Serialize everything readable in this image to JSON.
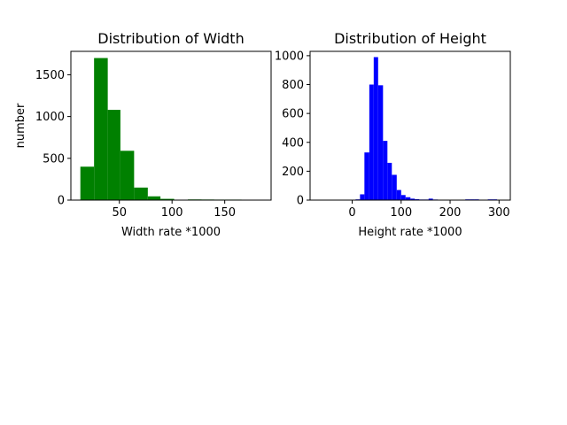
{
  "chart_data": [
    {
      "type": "bar",
      "title": "Distribution of Width",
      "xlabel": "Width rate *1000",
      "ylabel": "number",
      "color": "#008000",
      "xlim": [
        4,
        194
      ],
      "ylim": [
        0,
        1780
      ],
      "xticks": [
        50,
        100,
        150
      ],
      "yticks": [
        0,
        500,
        1000,
        1500
      ],
      "bins": [
        {
          "x0": 13,
          "x1": 26,
          "count": 400
        },
        {
          "x0": 26,
          "x1": 39,
          "count": 1700
        },
        {
          "x0": 39,
          "x1": 51,
          "count": 1080
        },
        {
          "x0": 51,
          "x1": 64,
          "count": 590
        },
        {
          "x0": 64,
          "x1": 77,
          "count": 150
        },
        {
          "x0": 77,
          "x1": 89,
          "count": 45
        },
        {
          "x0": 89,
          "x1": 102,
          "count": 15
        },
        {
          "x0": 102,
          "x1": 115,
          "count": 5
        },
        {
          "x0": 115,
          "x1": 128,
          "count": 8
        },
        {
          "x0": 128,
          "x1": 140,
          "count": 7
        },
        {
          "x0": 140,
          "x1": 153,
          "count": 6
        },
        {
          "x0": 153,
          "x1": 166,
          "count": 6
        },
        {
          "x0": 166,
          "x1": 178,
          "count": 5
        },
        {
          "x0": 178,
          "x1": 191,
          "count": 5
        }
      ],
      "grid": false
    },
    {
      "type": "bar",
      "title": "Distribution of Height",
      "xlabel": "Height rate *1000",
      "ylabel": "",
      "color": "#0000ff",
      "xlim": [
        -86,
        323
      ],
      "ylim": [
        0,
        1030
      ],
      "xticks": [
        0,
        100,
        200,
        300
      ],
      "yticks": [
        0,
        200,
        400,
        600,
        800,
        1000
      ],
      "bins": [
        {
          "x0": -68,
          "x1": -59,
          "count": 3
        },
        {
          "x0": -59,
          "x1": -49,
          "count": 0
        },
        {
          "x0": -49,
          "x1": -40,
          "count": 0
        },
        {
          "x0": -40,
          "x1": -31,
          "count": 0
        },
        {
          "x0": -31,
          "x1": -21,
          "count": 3
        },
        {
          "x0": -21,
          "x1": -12,
          "count": 0
        },
        {
          "x0": -12,
          "x1": -3,
          "count": 0
        },
        {
          "x0": -3,
          "x1": 7,
          "count": 2
        },
        {
          "x0": 7,
          "x1": 16,
          "count": 5
        },
        {
          "x0": 16,
          "x1": 25,
          "count": 40
        },
        {
          "x0": 25,
          "x1": 35,
          "count": 330
        },
        {
          "x0": 35,
          "x1": 44,
          "count": 800
        },
        {
          "x0": 44,
          "x1": 53,
          "count": 990
        },
        {
          "x0": 53,
          "x1": 63,
          "count": 795
        },
        {
          "x0": 63,
          "x1": 72,
          "count": 410
        },
        {
          "x0": 72,
          "x1": 81,
          "count": 258
        },
        {
          "x0": 81,
          "x1": 91,
          "count": 175
        },
        {
          "x0": 91,
          "x1": 100,
          "count": 70
        },
        {
          "x0": 100,
          "x1": 109,
          "count": 35
        },
        {
          "x0": 109,
          "x1": 119,
          "count": 20
        },
        {
          "x0": 119,
          "x1": 128,
          "count": 10
        },
        {
          "x0": 128,
          "x1": 137,
          "count": 6
        },
        {
          "x0": 137,
          "x1": 147,
          "count": 4
        },
        {
          "x0": 147,
          "x1": 156,
          "count": 4
        },
        {
          "x0": 156,
          "x1": 165,
          "count": 10
        },
        {
          "x0": 165,
          "x1": 175,
          "count": 4
        },
        {
          "x0": 175,
          "x1": 184,
          "count": 3
        },
        {
          "x0": 184,
          "x1": 193,
          "count": 2
        },
        {
          "x0": 193,
          "x1": 203,
          "count": 2
        },
        {
          "x0": 203,
          "x1": 212,
          "count": 3
        },
        {
          "x0": 212,
          "x1": 221,
          "count": 0
        },
        {
          "x0": 221,
          "x1": 231,
          "count": 2
        },
        {
          "x0": 231,
          "x1": 240,
          "count": 5
        },
        {
          "x0": 240,
          "x1": 249,
          "count": 5
        },
        {
          "x0": 249,
          "x1": 259,
          "count": 5
        },
        {
          "x0": 259,
          "x1": 268,
          "count": 2
        },
        {
          "x0": 268,
          "x1": 277,
          "count": 0
        },
        {
          "x0": 277,
          "x1": 287,
          "count": 5
        },
        {
          "x0": 287,
          "x1": 296,
          "count": 5
        },
        {
          "x0": 296,
          "x1": 305,
          "count": 3
        }
      ],
      "grid": false
    }
  ]
}
